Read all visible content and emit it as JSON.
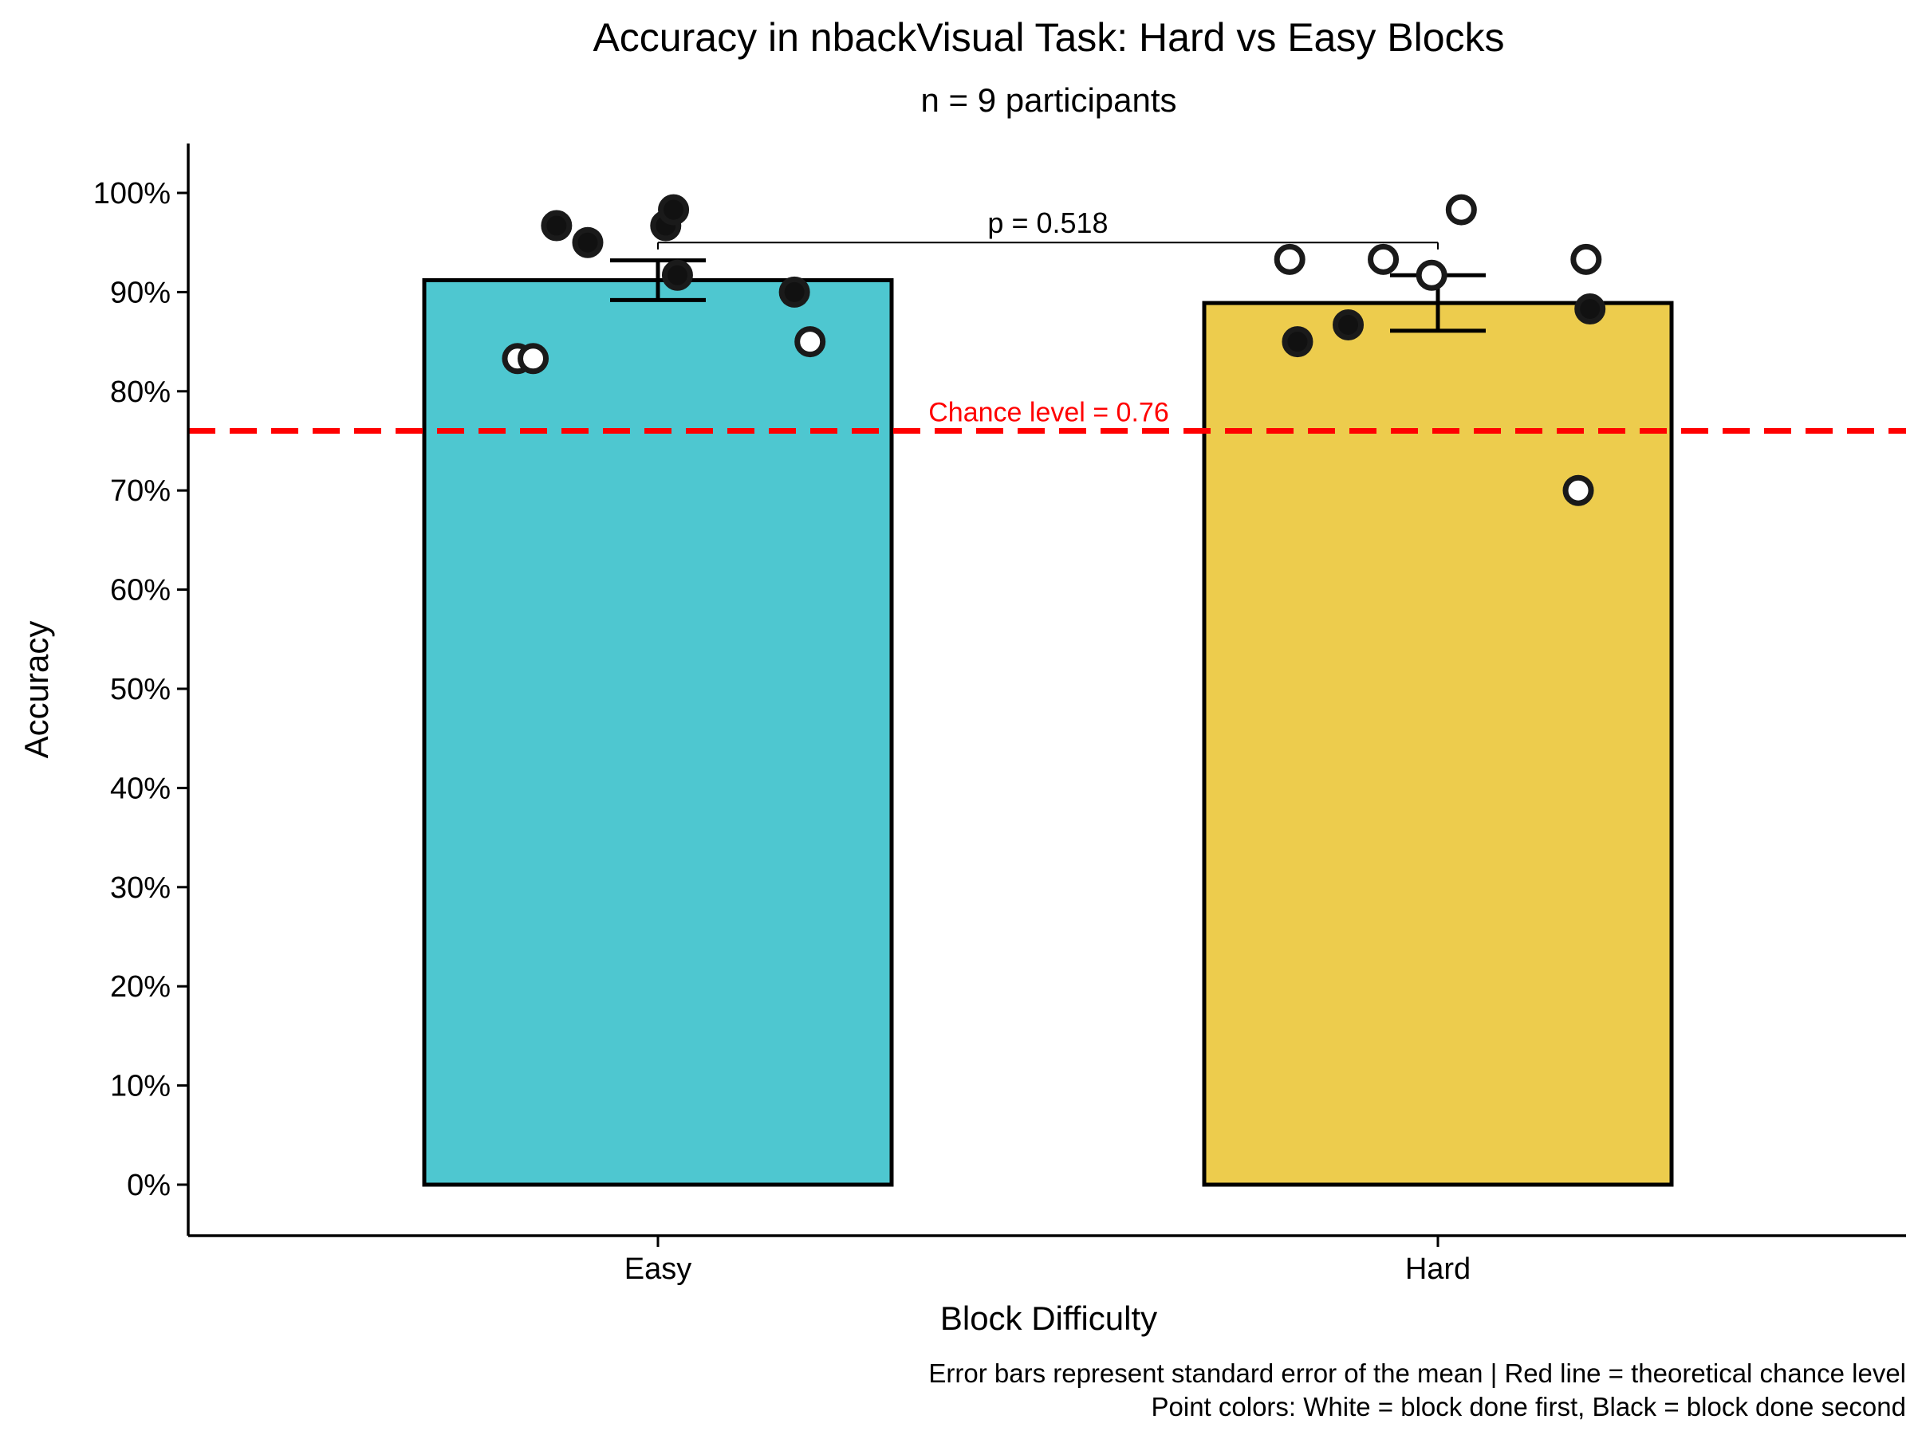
{
  "chart_data": {
    "type": "bar",
    "title": "Accuracy in nbackVisual Task: Hard vs Easy Blocks",
    "subtitle": "n = 9 participants",
    "xlabel": "Block Difficulty",
    "ylabel": "Accuracy",
    "ylim": [
      -0.05,
      1.05
    ],
    "yticks": [
      0,
      0.1,
      0.2,
      0.3,
      0.4,
      0.5,
      0.6,
      0.7,
      0.8,
      0.9,
      1.0
    ],
    "ytick_labels": [
      "0%",
      "10%",
      "20%",
      "30%",
      "40%",
      "50%",
      "60%",
      "70%",
      "80%",
      "90%",
      "100%"
    ],
    "categories": [
      "Easy",
      "Hard"
    ],
    "values": [
      0.912,
      0.889
    ],
    "sem": [
      0.02,
      0.028
    ],
    "bar_colors": [
      "#4ec7d0",
      "#edcc4d"
    ],
    "points": [
      {
        "category": "Easy",
        "x_jitter": -0.18,
        "y": 0.833,
        "fill": "white"
      },
      {
        "category": "Easy",
        "x_jitter": -0.16,
        "y": 0.833,
        "fill": "white"
      },
      {
        "category": "Easy",
        "x_jitter": -0.13,
        "y": 0.967,
        "fill": "black"
      },
      {
        "category": "Easy",
        "x_jitter": -0.09,
        "y": 0.95,
        "fill": "black"
      },
      {
        "category": "Easy",
        "x_jitter": 0.01,
        "y": 0.967,
        "fill": "black"
      },
      {
        "category": "Easy",
        "x_jitter": 0.02,
        "y": 0.983,
        "fill": "black"
      },
      {
        "category": "Easy",
        "x_jitter": 0.025,
        "y": 0.917,
        "fill": "black"
      },
      {
        "category": "Easy",
        "x_jitter": 0.175,
        "y": 0.9,
        "fill": "black"
      },
      {
        "category": "Easy",
        "x_jitter": 0.195,
        "y": 0.85,
        "fill": "white"
      },
      {
        "category": "Hard",
        "x_jitter": -0.19,
        "y": 0.933,
        "fill": "white"
      },
      {
        "category": "Hard",
        "x_jitter": -0.18,
        "y": 0.85,
        "fill": "black"
      },
      {
        "category": "Hard",
        "x_jitter": -0.115,
        "y": 0.867,
        "fill": "black"
      },
      {
        "category": "Hard",
        "x_jitter": -0.07,
        "y": 0.933,
        "fill": "white"
      },
      {
        "category": "Hard",
        "x_jitter": -0.008,
        "y": 0.917,
        "fill": "white"
      },
      {
        "category": "Hard",
        "x_jitter": 0.03,
        "y": 0.983,
        "fill": "white"
      },
      {
        "category": "Hard",
        "x_jitter": 0.18,
        "y": 0.7,
        "fill": "white"
      },
      {
        "category": "Hard",
        "x_jitter": 0.19,
        "y": 0.933,
        "fill": "white"
      },
      {
        "category": "Hard",
        "x_jitter": 0.195,
        "y": 0.883,
        "fill": "black"
      }
    ],
    "significance": {
      "label": "p = 0.518",
      "y": 0.95,
      "tick_drop": 0.007
    },
    "reference_line": {
      "y": 0.76,
      "label": "Chance level = 0.76",
      "color": "#ff0000",
      "style": "dashed"
    },
    "caption_lines": [
      "Error bars represent standard error of the mean | Red line = theoretical chance level",
      "Point colors: White = block done first, Black = block done second"
    ],
    "grid": false,
    "legend": "none"
  }
}
